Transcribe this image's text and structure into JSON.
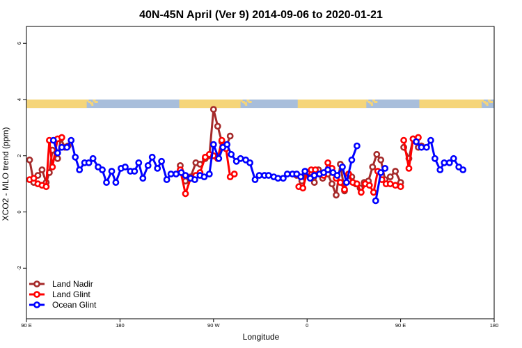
{
  "chart_data": {
    "type": "line",
    "title": "40N-45N April (Ver 9)   2014-09-06 to 2020-01-21",
    "xlabel": "Longitude",
    "ylabel": "XCO2 - MLO trend (ppm)",
    "xlim": [
      0,
      450
    ],
    "ylim": [
      -3.8,
      6.6
    ],
    "x_ticks": [
      {
        "value": 0,
        "label": "90 E"
      },
      {
        "value": 90,
        "label": "180"
      },
      {
        "value": 180,
        "label": "90 W"
      },
      {
        "value": 270,
        "label": "0"
      },
      {
        "value": 360,
        "label": "90 E"
      },
      {
        "value": 450,
        "label": "180"
      }
    ],
    "y_ticks": [
      -2,
      0,
      2,
      4,
      6
    ],
    "legend_position": "bottom-left",
    "land_mask": {
      "y_range": [
        3.7,
        4.0
      ],
      "land_color": "#f5d57a",
      "ocean_color": "#a8bedb",
      "land_segments": [
        [
          0,
          58
        ],
        [
          147,
          206
        ],
        [
          261,
          327
        ],
        [
          378,
          438
        ]
      ]
    },
    "series": [
      {
        "name": "Land Nadir",
        "color": "#a52a2a",
        "segments": [
          [
            [
              3,
              1.85
            ],
            [
              7,
              1.05
            ],
            [
              11,
              1.3
            ],
            [
              15,
              1.5
            ],
            [
              19,
              1.05
            ],
            [
              22,
              1.4
            ],
            [
              25,
              2.2
            ],
            [
              30,
              1.9
            ],
            [
              33,
              2.6
            ],
            [
              37,
              2.3
            ],
            [
              40,
              2.35
            ]
          ],
          [
            [
              148,
              1.65
            ],
            [
              153,
              1.1
            ],
            [
              158,
              1.25
            ],
            [
              163,
              1.75
            ],
            [
              167,
              1.7
            ],
            [
              172,
              1.9
            ],
            [
              176,
              2.0
            ],
            [
              180,
              3.65
            ],
            [
              184,
              3.05
            ],
            [
              188,
              2.5
            ],
            [
              192,
              2.3
            ],
            [
              196,
              2.7
            ]
          ],
          [
            [
              260,
              1.3
            ],
            [
              265,
              1.1
            ],
            [
              269,
              1.35
            ],
            [
              273,
              1.4
            ],
            [
              277,
              1.05
            ],
            [
              281,
              1.5
            ],
            [
              285,
              1.2
            ],
            [
              290,
              1.35
            ],
            [
              294,
              1.0
            ],
            [
              298,
              0.6
            ],
            [
              302,
              1.7
            ],
            [
              306,
              0.75
            ],
            [
              310,
              1.35
            ],
            [
              313,
              1.25
            ],
            [
              317,
              1.0
            ],
            [
              321,
              0.85
            ],
            [
              325,
              1.05
            ],
            [
              329,
              1.1
            ],
            [
              333,
              1.6
            ],
            [
              337,
              2.05
            ],
            [
              341,
              1.85
            ],
            [
              345,
              1.15
            ],
            [
              350,
              1.25
            ],
            [
              355,
              1.45
            ],
            [
              360,
              1.05
            ]
          ],
          [
            [
              363,
              2.3
            ],
            [
              368,
              1.9
            ],
            [
              372,
              2.6
            ],
            [
              377,
              2.3
            ],
            [
              380,
              2.35
            ]
          ]
        ]
      },
      {
        "name": "Land Glint",
        "color": "#ff0000",
        "segments": [
          [
            [
              3,
              1.15
            ],
            [
              7,
              1.2
            ],
            [
              11,
              1.0
            ],
            [
              15,
              0.95
            ],
            [
              19,
              0.9
            ],
            [
              22,
              2.55
            ],
            [
              25,
              1.6
            ],
            [
              30,
              2.6
            ],
            [
              34,
              2.65
            ]
          ],
          [
            [
              148,
              1.5
            ],
            [
              153,
              0.65
            ],
            [
              158,
              1.2
            ],
            [
              163,
              1.3
            ],
            [
              167,
              1.4
            ],
            [
              172,
              1.95
            ],
            [
              176,
              2.05
            ],
            [
              180,
              2.0
            ],
            [
              184,
              1.9
            ],
            [
              188,
              2.55
            ],
            [
              192,
              2.25
            ],
            [
              196,
              1.25
            ],
            [
              200,
              1.35
            ]
          ],
          [
            [
              262,
              0.9
            ],
            [
              266,
              0.85
            ],
            [
              270,
              1.4
            ],
            [
              274,
              1.5
            ],
            [
              278,
              1.5
            ],
            [
              282,
              1.35
            ],
            [
              286,
              1.3
            ],
            [
              290,
              1.75
            ],
            [
              294,
              1.55
            ],
            [
              298,
              1.2
            ],
            [
              302,
              1.05
            ],
            [
              306,
              0.8
            ],
            [
              310,
              1.35
            ],
            [
              314,
              1.05
            ],
            [
              318,
              1.0
            ],
            [
              322,
              0.7
            ],
            [
              326,
              1.0
            ],
            [
              330,
              0.95
            ],
            [
              334,
              0.7
            ],
            [
              338,
              1.45
            ],
            [
              342,
              1.15
            ],
            [
              346,
              1.0
            ],
            [
              350,
              1.0
            ],
            [
              355,
              0.95
            ],
            [
              360,
              0.9
            ]
          ],
          [
            [
              363,
              2.55
            ],
            [
              368,
              1.55
            ],
            [
              372,
              2.6
            ],
            [
              377,
              2.65
            ]
          ]
        ]
      },
      {
        "name": "Ocean Glint",
        "color": "#0000ff",
        "segments": [
          [
            [
              26,
              2.55
            ],
            [
              30,
              2.1
            ],
            [
              34,
              2.3
            ],
            [
              39,
              2.3
            ],
            [
              43,
              2.55
            ],
            [
              47,
              1.95
            ],
            [
              51,
              1.5
            ],
            [
              56,
              1.75
            ],
            [
              60,
              1.75
            ],
            [
              64,
              1.9
            ],
            [
              69,
              1.6
            ],
            [
              73,
              1.5
            ],
            [
              77,
              1.05
            ],
            [
              82,
              1.45
            ],
            [
              86,
              1.05
            ],
            [
              91,
              1.55
            ],
            [
              95,
              1.6
            ],
            [
              100,
              1.45
            ],
            [
              104,
              1.45
            ],
            [
              108,
              1.75
            ],
            [
              112,
              1.2
            ],
            [
              117,
              1.65
            ],
            [
              121,
              1.95
            ],
            [
              126,
              1.55
            ],
            [
              130,
              1.8
            ],
            [
              135,
              1.15
            ],
            [
              139,
              1.35
            ],
            [
              144,
              1.35
            ],
            [
              149,
              1.4
            ],
            [
              153,
              1.3
            ],
            [
              158,
              1.2
            ],
            [
              162,
              1.15
            ],
            [
              167,
              1.3
            ],
            [
              171,
              1.25
            ],
            [
              176,
              1.35
            ],
            [
              180,
              2.4
            ],
            [
              185,
              1.9
            ],
            [
              189,
              2.3
            ],
            [
              193,
              2.4
            ],
            [
              197,
              2.05
            ],
            [
              202,
              1.8
            ],
            [
              206,
              1.9
            ],
            [
              211,
              1.85
            ],
            [
              215,
              1.75
            ],
            [
              220,
              1.15
            ],
            [
              224,
              1.3
            ],
            [
              229,
              1.3
            ],
            [
              233,
              1.3
            ],
            [
              238,
              1.25
            ],
            [
              242,
              1.2
            ],
            [
              247,
              1.2
            ],
            [
              251,
              1.35
            ],
            [
              256,
              1.35
            ],
            [
              260,
              1.35
            ],
            [
              264,
              1.25
            ],
            [
              268,
              1.45
            ],
            [
              273,
              1.2
            ],
            [
              277,
              1.3
            ],
            [
              282,
              1.35
            ],
            [
              286,
              1.4
            ],
            [
              290,
              1.5
            ],
            [
              295,
              1.4
            ],
            [
              299,
              1.3
            ],
            [
              304,
              1.6
            ],
            [
              308,
              1.05
            ],
            [
              313,
              1.85
            ],
            [
              318,
              2.35
            ]
          ],
          [
            [
              336,
              0.4
            ],
            [
              341,
              1.4
            ],
            [
              345,
              1.55
            ]
          ],
          [
            [
              375,
              2.5
            ],
            [
              380,
              2.3
            ],
            [
              385,
              2.3
            ],
            [
              389,
              2.55
            ],
            [
              393,
              1.9
            ],
            [
              398,
              1.5
            ],
            [
              402,
              1.75
            ],
            [
              407,
              1.75
            ],
            [
              411,
              1.9
            ],
            [
              416,
              1.6
            ],
            [
              420,
              1.5
            ]
          ]
        ]
      }
    ]
  }
}
